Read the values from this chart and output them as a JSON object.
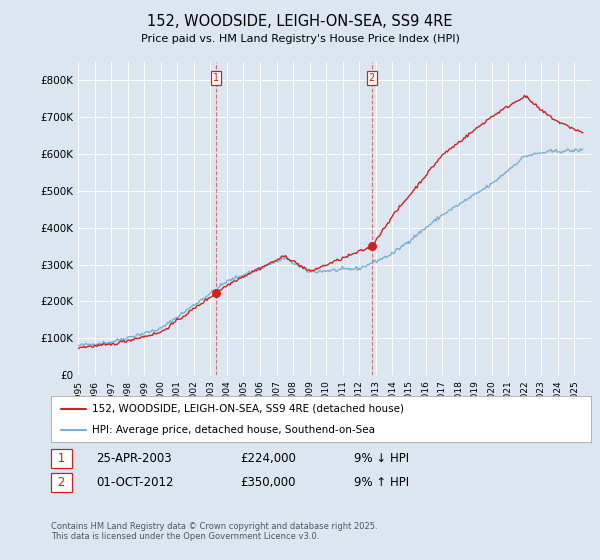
{
  "title": "152, WOODSIDE, LEIGH-ON-SEA, SS9 4RE",
  "subtitle": "Price paid vs. HM Land Registry's House Price Index (HPI)",
  "background_color": "#dce6f0",
  "plot_background": "#dce6f0",
  "ylim": [
    0,
    850000
  ],
  "yticks": [
    0,
    100000,
    200000,
    300000,
    400000,
    500000,
    600000,
    700000,
    800000
  ],
  "ytick_labels": [
    "£0",
    "£100K",
    "£200K",
    "£300K",
    "£400K",
    "£500K",
    "£600K",
    "£700K",
    "£800K"
  ],
  "hpi_color": "#7aafd4",
  "price_color": "#cc2222",
  "vline_color": "#cc4444",
  "transaction1_date": 2003.32,
  "transaction1_price": 224000,
  "transaction2_date": 2012.75,
  "transaction2_price": 350000,
  "legend_label_price": "152, WOODSIDE, LEIGH-ON-SEA, SS9 4RE (detached house)",
  "legend_label_hpi": "HPI: Average price, detached house, Southend-on-Sea",
  "table_row1": [
    "1",
    "25-APR-2003",
    "£224,000",
    "9% ↓ HPI"
  ],
  "table_row2": [
    "2",
    "01-OCT-2012",
    "£350,000",
    "9% ↑ HPI"
  ],
  "footnote": "Contains HM Land Registry data © Crown copyright and database right 2025.\nThis data is licensed under the Open Government Licence v3.0.",
  "xmin": 1995,
  "xmax": 2026
}
